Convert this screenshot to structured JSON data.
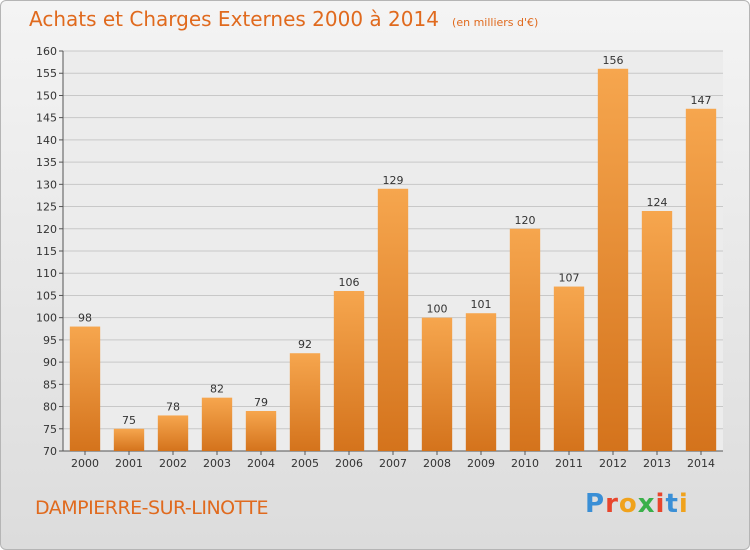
{
  "header": {
    "title": "Achats et Charges Externes 2000 à 2014",
    "subtitle": "(en milliers d'€)"
  },
  "footer": {
    "commune": "DAMPIERRE-SUR-LINOTTE",
    "logo_letters": [
      "P",
      "r",
      "o",
      "x",
      "i",
      "t",
      "i"
    ],
    "logo_colors": [
      "#3a8fd6",
      "#e8452c",
      "#f0a21c",
      "#3ab04a",
      "#e8452c",
      "#3a8fd6",
      "#f0a21c"
    ]
  },
  "colors": {
    "bar_light": "#f6a64e",
    "bar_dark": "#d4731c",
    "title": "#e06a1e"
  },
  "chart_data": {
    "type": "bar",
    "title": "Achats et Charges Externes 2000 à 2014",
    "subtitle": "(en milliers d'€)",
    "categories": [
      "2000",
      "2001",
      "2002",
      "2003",
      "2004",
      "2005",
      "2006",
      "2007",
      "2008",
      "2009",
      "2010",
      "2011",
      "2012",
      "2013",
      "2014"
    ],
    "values": [
      98,
      75,
      78,
      82,
      79,
      92,
      106,
      129,
      100,
      101,
      120,
      107,
      156,
      124,
      147
    ],
    "ylim": [
      70,
      160
    ],
    "yticks": [
      70,
      75,
      80,
      85,
      90,
      95,
      100,
      105,
      110,
      115,
      120,
      125,
      130,
      135,
      140,
      145,
      150,
      155,
      160
    ],
    "grid": true,
    "xlabel": "",
    "ylabel": ""
  }
}
